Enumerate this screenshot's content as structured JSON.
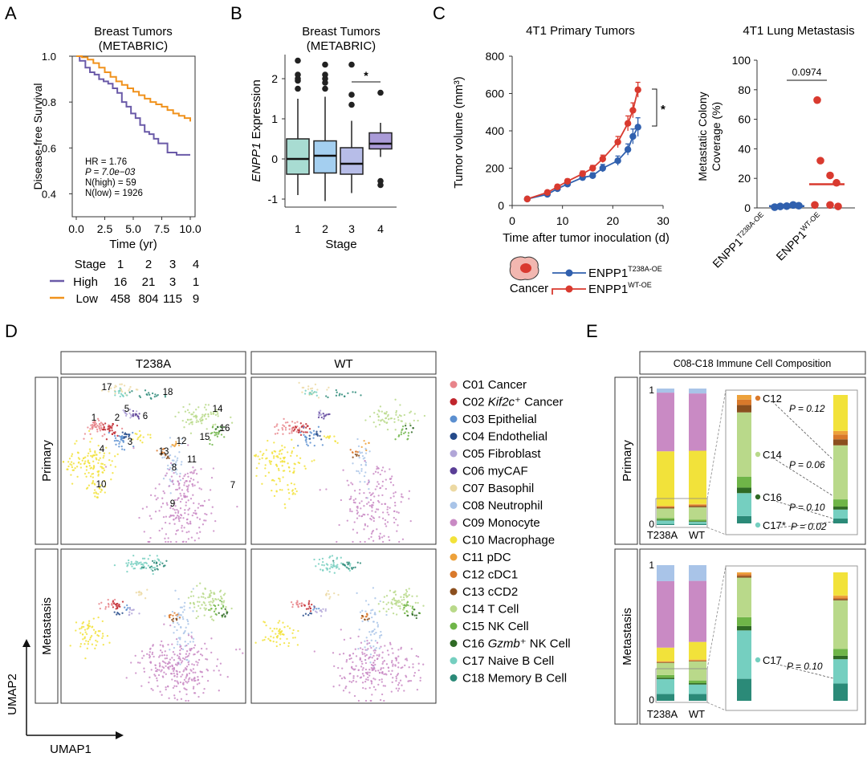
{
  "panel_letters": [
    "A",
    "B",
    "C",
    "D",
    "E"
  ],
  "chart_data": [
    {
      "id": "A",
      "type": "line",
      "title": "Breast Tumors",
      "subtitle": "(METABRIC)",
      "xlabel": "Time (yr)",
      "ylabel": "Disease-free Survival",
      "xlim": [
        0,
        10
      ],
      "ylim": [
        0.3,
        1.0
      ],
      "xticks": [
        "0.0",
        "2.5",
        "5.0",
        "7.5",
        "10.0"
      ],
      "yticks": [
        "0.4",
        "0.6",
        "0.8",
        "1.0"
      ],
      "stats": [
        "HR = 1.76",
        "P = 7.0e−03",
        "N(high) = 59",
        "N(low) = 1926"
      ],
      "series": [
        {
          "name": "High",
          "color": "#6a5aa8",
          "x": [
            0,
            0.3,
            0.8,
            1.2,
            1.6,
            2.0,
            2.4,
            2.8,
            3.2,
            3.6,
            4.0,
            4.4,
            4.8,
            5.2,
            5.6,
            6.0,
            6.4,
            6.8,
            7.2,
            7.6,
            8.0,
            8.4,
            8.8,
            9.2,
            9.6,
            10.0
          ],
          "y": [
            1.0,
            0.98,
            0.95,
            0.93,
            0.92,
            0.9,
            0.89,
            0.88,
            0.86,
            0.84,
            0.8,
            0.78,
            0.75,
            0.73,
            0.7,
            0.67,
            0.66,
            0.64,
            0.62,
            0.62,
            0.58,
            0.58,
            0.57,
            0.57,
            0.57,
            0.57
          ]
        },
        {
          "name": "Low",
          "color": "#f0921d",
          "x": [
            0,
            0.5,
            1,
            1.5,
            2,
            2.5,
            3,
            3.5,
            4,
            4.5,
            5,
            5.5,
            6,
            6.5,
            7,
            7.5,
            8,
            8.5,
            9,
            9.5,
            10
          ],
          "y": [
            1.0,
            0.995,
            0.985,
            0.97,
            0.95,
            0.93,
            0.91,
            0.89,
            0.875,
            0.86,
            0.845,
            0.83,
            0.815,
            0.8,
            0.79,
            0.78,
            0.765,
            0.75,
            0.74,
            0.73,
            0.715
          ]
        }
      ],
      "risk_table": {
        "header_label": "Stage",
        "stages": [
          "1",
          "2",
          "3",
          "4"
        ],
        "rows": [
          {
            "name": "High",
            "values": [
              "16",
              "21",
              "3",
              "1"
            ]
          },
          {
            "name": "Low",
            "values": [
              "458",
              "804",
              "115",
              "9"
            ]
          }
        ]
      }
    },
    {
      "id": "B",
      "type": "box",
      "title": "Breast Tumors",
      "subtitle": "(METABRIC)",
      "xlabel": "Stage",
      "ylabel_italic": "ENPP1",
      "ylabel_rest": " Expression",
      "ylim": [
        -1.2,
        2.6
      ],
      "yticks": [
        "-1",
        "0",
        "1",
        "2"
      ],
      "categories": [
        "1",
        "2",
        "3",
        "4"
      ],
      "boxes": [
        {
          "min": -0.9,
          "q1": -0.38,
          "median": 0.0,
          "q3": 0.5,
          "max": 1.5,
          "color": "#a8dcd2",
          "outliers": [
            1.75,
            1.95,
            2.0,
            2.1,
            2.45
          ]
        },
        {
          "min": -1.05,
          "q1": -0.35,
          "median": 0.08,
          "q3": 0.45,
          "max": 1.55,
          "color": "#a4cff0",
          "outliers": [
            1.75,
            1.9,
            2.0,
            2.1,
            2.35
          ]
        },
        {
          "min": -0.85,
          "q1": -0.38,
          "median": -0.12,
          "q3": 0.28,
          "max": 0.95,
          "color": "#b7bde8",
          "outliers": [
            1.35,
            1.6,
            2.35
          ]
        },
        {
          "min": 0.05,
          "q1": 0.25,
          "median": 0.38,
          "q3": 0.65,
          "max": 0.9,
          "color": "#aa9bd8",
          "outliers": [
            -0.55,
            -0.65,
            1.65
          ]
        }
      ],
      "significance": {
        "between": [
          "3",
          "4"
        ],
        "label": "*"
      }
    },
    {
      "id": "C-left",
      "type": "line",
      "title": "4T1 Primary Tumors",
      "xlabel": "Time after tumor inoculation (d)",
      "ylabel": "Tumor volume (mm³)",
      "xlim": [
        0,
        30
      ],
      "ylim": [
        0,
        800
      ],
      "xticks": [
        "0",
        "10",
        "20",
        "30"
      ],
      "yticks": [
        "0",
        "200",
        "400",
        "600",
        "800"
      ],
      "significance": "*",
      "legend_label": "Cancer",
      "series": [
        {
          "name": "ENPP1",
          "sup": "T238A-OE",
          "color": "#3060ae",
          "x": [
            3,
            7,
            9,
            11,
            14,
            16,
            18,
            21,
            23,
            24,
            25
          ],
          "y": [
            35,
            60,
            90,
            115,
            150,
            160,
            200,
            240,
            300,
            370,
            420
          ],
          "err": [
            5,
            10,
            12,
            12,
            15,
            15,
            20,
            25,
            30,
            40,
            50
          ]
        },
        {
          "name": "ENPP1",
          "sup": "WT-OE",
          "color": "#d93a2f",
          "x": [
            3,
            7,
            9,
            11,
            14,
            16,
            18,
            21,
            23,
            24,
            25
          ],
          "y": [
            35,
            70,
            100,
            130,
            170,
            200,
            250,
            340,
            440,
            510,
            620
          ],
          "err": [
            5,
            10,
            12,
            12,
            15,
            15,
            20,
            30,
            40,
            40,
            40
          ]
        }
      ]
    },
    {
      "id": "C-right",
      "type": "scatter",
      "title": "4T1 Lung Metastasis",
      "ylabel": "Metastatic Colony Coverage (%)",
      "ylabel_lines": [
        "Metastatic Colony",
        "Coverage (%)"
      ],
      "ylim": [
        0,
        100
      ],
      "yticks": [
        "0",
        "20",
        "40",
        "60",
        "80",
        "100"
      ],
      "categories": [
        {
          "name": "ENPP1",
          "sup": "T238A-OE",
          "color": "#3060ae",
          "values": [
            0.5,
            1.0,
            1.2,
            2.0,
            1.5
          ],
          "median": 1.2
        },
        {
          "name": "ENPP1",
          "sup": "WT-OE",
          "color": "#d93a2f",
          "values": [
            73,
            32,
            22,
            2,
            2,
            17,
            1
          ],
          "median": 16
        }
      ],
      "p_label": "0.0974"
    },
    {
      "id": "D",
      "type": "scatter",
      "column_headers": [
        "T238A",
        "WT"
      ],
      "row_headers": [
        "Primary",
        "Metastasis"
      ],
      "xlabel": "UMAP1",
      "ylabel": "UMAP2",
      "cluster_numbers": [
        "1",
        "2",
        "3",
        "4",
        "5",
        "6",
        "7",
        "8",
        "9",
        "10",
        "11",
        "12",
        "13",
        "14",
        "15",
        "16",
        "17",
        "18"
      ],
      "legend": [
        {
          "code": "C01",
          "pre": "",
          "italic": "",
          "post": "Cancer",
          "color": "#e8848a"
        },
        {
          "code": "C02",
          "pre": "",
          "italic": "Kif2c",
          "post": "⁺ Cancer",
          "color": "#c0262d"
        },
        {
          "code": "C03",
          "pre": "",
          "italic": "",
          "post": "Epithelial",
          "color": "#5b8fd0"
        },
        {
          "code": "C04",
          "pre": "",
          "italic": "",
          "post": "Endothelial",
          "color": "#244a8a"
        },
        {
          "code": "C05",
          "pre": "",
          "italic": "",
          "post": "Fibroblast",
          "color": "#b1a6d8"
        },
        {
          "code": "C06",
          "pre": "",
          "italic": "",
          "post": "myCAF",
          "color": "#5a3e96"
        },
        {
          "code": "C07",
          "pre": "",
          "italic": "",
          "post": "Basophil",
          "color": "#ecd9a3"
        },
        {
          "code": "C08",
          "pre": "",
          "italic": "",
          "post": "Neutrophil",
          "color": "#a9c4e8"
        },
        {
          "code": "C09",
          "pre": "",
          "italic": "",
          "post": "Monocyte",
          "color": "#c98ac4"
        },
        {
          "code": "C10",
          "pre": "",
          "italic": "",
          "post": "Macrophage",
          "color": "#f2e23a"
        },
        {
          "code": "C11",
          "pre": "",
          "italic": "",
          "post": "pDC",
          "color": "#eda13a"
        },
        {
          "code": "C12",
          "pre": "",
          "italic": "",
          "post": "cDC1",
          "color": "#d9792b"
        },
        {
          "code": "C13",
          "pre": "",
          "italic": "",
          "post": "cCD2",
          "color": "#8b4f1e"
        },
        {
          "code": "C14",
          "pre": "",
          "italic": "",
          "post": "T Cell",
          "color": "#b9d98a"
        },
        {
          "code": "C15",
          "pre": "",
          "italic": "",
          "post": "NK Cell",
          "color": "#6fb548"
        },
        {
          "code": "C16",
          "pre": "",
          "italic": "Gzmb",
          "post": "⁺ NK Cell",
          "color": "#2f6a25"
        },
        {
          "code": "C17",
          "pre": "",
          "italic": "",
          "post": "Naive B Cell",
          "color": "#75cfc0"
        },
        {
          "code": "C18",
          "pre": "",
          "italic": "",
          "post": "Memory B Cell",
          "color": "#2b8a78"
        }
      ]
    },
    {
      "id": "E",
      "type": "bar",
      "title": "C08-C18 Immune Cell Composition",
      "row_headers": [
        "Primary",
        "Metastasis"
      ],
      "categories": [
        "T238A",
        "WT"
      ],
      "yticks": [
        "0",
        "1"
      ],
      "stack_order": [
        "C18",
        "C17",
        "C16",
        "C15",
        "C14",
        "C13",
        "C12",
        "C11",
        "C10",
        "C09",
        "C08"
      ],
      "colors": {
        "C08": "#a9c4e8",
        "C09": "#c98ac4",
        "C10": "#f2e23a",
        "C11": "#eda13a",
        "C12": "#d9792b",
        "C13": "#8b4f1e",
        "C14": "#b9d98a",
        "C15": "#6fb548",
        "C16": "#2f6a25",
        "C17": "#75cfc0",
        "C18": "#2b8a78"
      },
      "primary": {
        "T238A": {
          "C18": 0.008,
          "C17": 0.025,
          "C16": 0.006,
          "C15": 0.012,
          "C14": 0.07,
          "C13": 0.008,
          "C12": 0.006,
          "C11": 0.005,
          "C10": 0.4,
          "C09": 0.43,
          "C08": 0.03
        },
        "WT": {
          "C18": 0.008,
          "C17": 0.015,
          "C16": 0.005,
          "C15": 0.012,
          "C14": 0.09,
          "C13": 0.01,
          "C12": 0.008,
          "C11": 0.006,
          "C10": 0.39,
          "C09": 0.42,
          "C08": 0.036
        }
      },
      "primary_annotations": [
        {
          "cluster": "C12",
          "p": "P = 0.12"
        },
        {
          "cluster": "C14",
          "p": "P = 0.06"
        },
        {
          "cluster": "C16",
          "p": "P = 0.10"
        },
        {
          "cluster": "C17",
          "p": "P = 0.02",
          "star": "*"
        }
      ],
      "metastasis": {
        "T238A": {
          "C18": 0.05,
          "C17": 0.11,
          "C16": 0.01,
          "C15": 0.02,
          "C14": 0.09,
          "C13": 0.004,
          "C12": 0.004,
          "C11": 0.004,
          "C10": 0.1,
          "C09": 0.49,
          "C08": 0.118
        },
        "WT": {
          "C18": 0.05,
          "C17": 0.07,
          "C16": 0.01,
          "C15": 0.02,
          "C14": 0.14,
          "C13": 0.004,
          "C12": 0.004,
          "C11": 0.006,
          "C10": 0.13,
          "C09": 0.45,
          "C08": 0.116
        }
      },
      "metastasis_annotations": [
        {
          "cluster": "C17",
          "p": "P = 0.10"
        }
      ]
    }
  ]
}
